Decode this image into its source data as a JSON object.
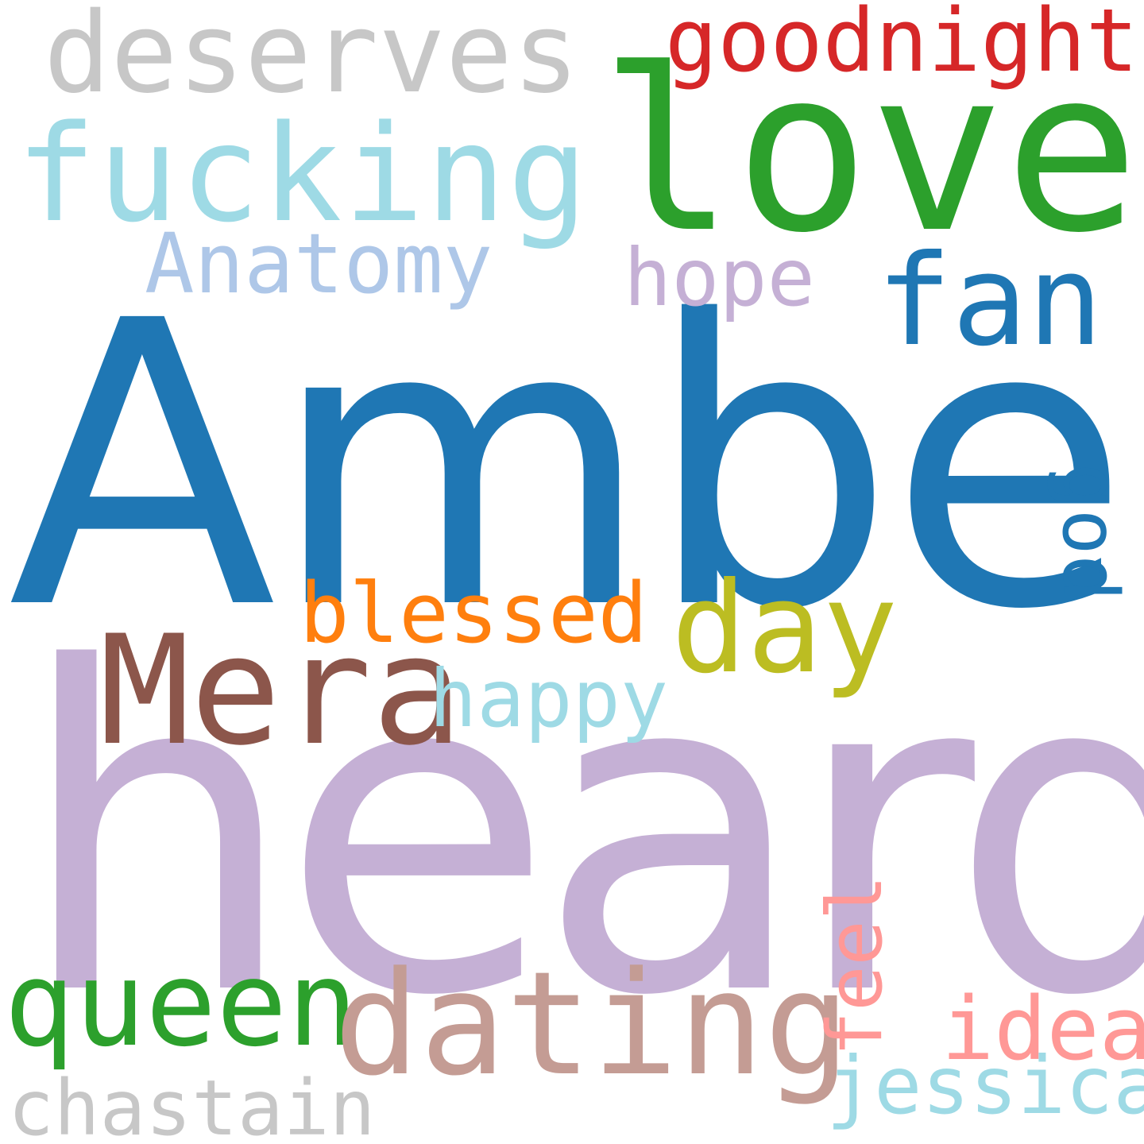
{
  "words": {
    "amber": {
      "text": "Amber",
      "color": "#1f77b4"
    },
    "heard": {
      "text": "heard",
      "color": "#c5b0d5"
    },
    "love": {
      "text": "love",
      "color": "#2ca02c"
    },
    "fucking": {
      "text": "fucking",
      "color": "#9edae5"
    },
    "deserves": {
      "text": "deserves",
      "color": "#c7c7c7"
    },
    "goodnight": {
      "text": "goodnight",
      "color": "#d62728"
    },
    "fan": {
      "text": "fan",
      "color": "#1f77b4"
    },
    "anatomy": {
      "text": "Anatomy",
      "color": "#aec7e8"
    },
    "hope": {
      "text": "hope",
      "color": "#c5b0d5"
    },
    "god": {
      "text": "god",
      "color": "#1f77b4"
    },
    "day": {
      "text": "day",
      "color": "#bcbd22"
    },
    "blessed": {
      "text": "blessed",
      "color": "#ff7f0e"
    },
    "mera": {
      "text": "Mera",
      "color": "#8c564b"
    },
    "happy": {
      "text": "happy",
      "color": "#9edae5"
    },
    "queen": {
      "text": "queen",
      "color": "#2ca02c"
    },
    "dating": {
      "text": "dating",
      "color": "#c49c94"
    },
    "feel": {
      "text": "feel",
      "color": "#ff9896"
    },
    "idea": {
      "text": "idea",
      "color": "#ff9896"
    },
    "jessica": {
      "text": "jessica",
      "color": "#9edae5"
    },
    "chastain": {
      "text": "chastain",
      "color": "#c7c7c7"
    }
  }
}
